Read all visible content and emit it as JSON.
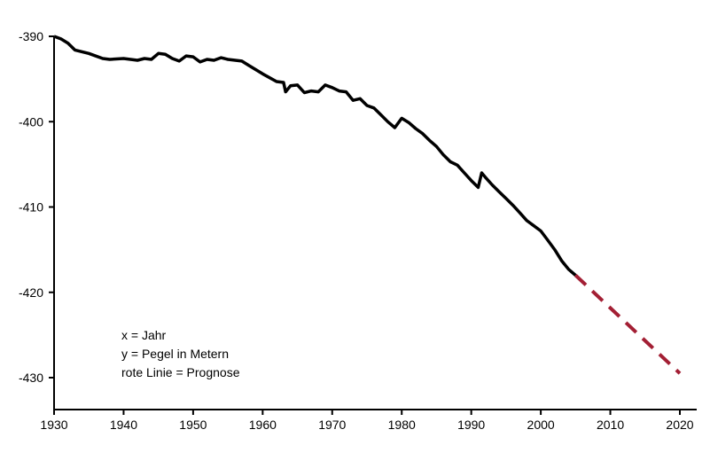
{
  "chart_data": {
    "type": "line",
    "title": "",
    "xlabel": "",
    "ylabel": "",
    "xlim": [
      1930,
      2020
    ],
    "ylim": [
      -434,
      -389
    ],
    "x_ticks": [
      1930,
      1940,
      1950,
      1960,
      1970,
      1980,
      1990,
      2000,
      2010,
      2020
    ],
    "x_tick_labels": [
      "1930",
      "1940",
      "1950",
      "1960",
      "1970",
      "1980",
      "1990",
      "2000",
      "2010",
      "2020"
    ],
    "y_ticks": [
      -390,
      -400,
      -410,
      -420,
      -430
    ],
    "y_tick_labels": [
      "-390",
      "-400",
      "-410",
      "-420",
      "-430"
    ],
    "grid": false,
    "annotations": [
      "x = Jahr",
      "y = Pegel in Metern",
      "rote Linie = Prognose"
    ],
    "series": [
      {
        "color": "#000000",
        "style": "solid",
        "x": [
          1930,
          1931,
          1932,
          1933,
          1935,
          1937,
          1938,
          1940,
          1942,
          1943,
          1944,
          1945,
          1946,
          1947,
          1948,
          1949,
          1950,
          1951,
          1952,
          1953,
          1954,
          1955,
          1957,
          1958,
          1960,
          1962,
          1963,
          1963.3,
          1964,
          1965,
          1966,
          1967,
          1968,
          1969,
          1970,
          1971,
          1972,
          1973,
          1974,
          1975,
          1976,
          1977,
          1978,
          1979,
          1980,
          1981,
          1982,
          1983,
          1984,
          1985,
          1986,
          1987,
          1988,
          1989,
          1990,
          1991,
          1991.5,
          1992,
          1993,
          1994,
          1995,
          1996,
          1997,
          1998,
          1999,
          2000,
          2001,
          2002,
          2003,
          2004,
          2005
        ],
        "values": [
          -390.0,
          -390.3,
          -390.8,
          -391.6,
          -392.0,
          -392.6,
          -392.7,
          -392.6,
          -392.8,
          -392.6,
          -392.7,
          -392.0,
          -392.1,
          -392.6,
          -392.9,
          -392.3,
          -392.4,
          -393.0,
          -392.7,
          -392.8,
          -392.5,
          -392.7,
          -392.9,
          -393.4,
          -394.4,
          -395.3,
          -395.4,
          -396.5,
          -395.8,
          -395.7,
          -396.6,
          -396.4,
          -396.5,
          -395.7,
          -396.0,
          -396.4,
          -396.5,
          -397.5,
          -397.3,
          -398.1,
          -398.4,
          -399.2,
          -400.0,
          -400.7,
          -399.6,
          -400.1,
          -400.8,
          -401.4,
          -402.2,
          -402.9,
          -403.9,
          -404.7,
          -405.1,
          -406.0,
          -406.9,
          -407.7,
          -406.0,
          -406.5,
          -407.4,
          -408.2,
          -409.0,
          -409.8,
          -410.7,
          -411.6,
          -412.2,
          -412.8,
          -413.9,
          -415.0,
          -416.3,
          -417.3,
          -418.0
        ]
      },
      {
        "color": "#a31f34",
        "style": "dashed",
        "x": [
          2005,
          2020
        ],
        "values": [
          -418.0,
          -429.5
        ]
      }
    ]
  }
}
